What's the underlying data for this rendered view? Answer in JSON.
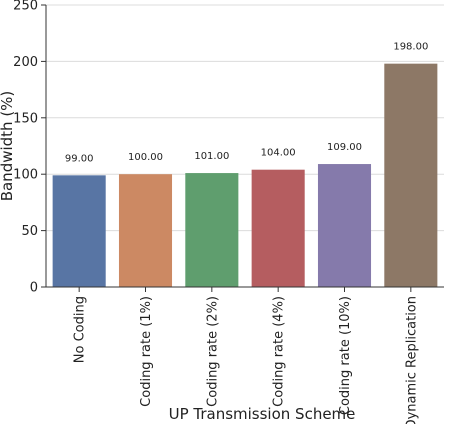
{
  "chart_data": {
    "type": "bar",
    "title": "",
    "xlabel": "UP Transmission Scheme",
    "ylabel": "Bandwidth (%)",
    "categories": [
      "No Coding",
      "Coding rate (1%)",
      "Coding rate (2%)",
      "Coding rate (4%)",
      "Coding rate (10%)",
      "Dynamic Replication"
    ],
    "values": [
      99.0,
      100.0,
      101.0,
      104.0,
      109.0,
      198.0
    ],
    "data_labels": [
      "99.00",
      "100.00",
      "101.00",
      "104.00",
      "109.00",
      "198.00"
    ],
    "colors": [
      "#5875a4",
      "#cc8963",
      "#5f9e6e",
      "#b55d60",
      "#857aab",
      "#8d7866"
    ],
    "ylim": [
      0,
      250
    ],
    "yticks": [
      0,
      50,
      100,
      150,
      200,
      250
    ],
    "grid": "horizontal",
    "legend": "none"
  }
}
